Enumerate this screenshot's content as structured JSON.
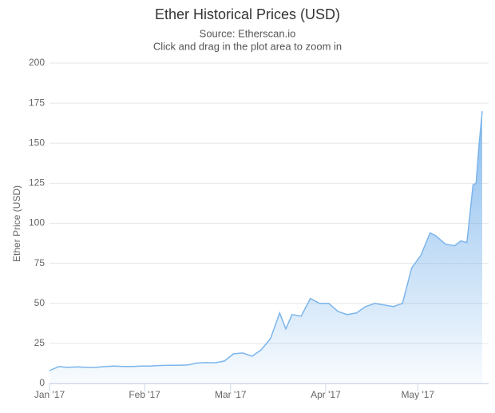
{
  "chart_data": {
    "type": "area",
    "title": "Ether Historical Prices (USD)",
    "subtitle": "Source: Etherscan.io",
    "note": "Click and drag in the plot area to zoom in",
    "y_label": "Ether Price (USD)",
    "color": "#7cb5ec",
    "x": [
      0,
      3,
      6,
      9,
      12,
      15,
      18,
      21,
      24,
      27,
      30,
      33,
      36,
      39,
      42,
      45,
      48,
      51,
      54,
      57,
      60,
      63,
      66,
      69,
      72,
      75,
      77,
      79,
      82,
      85,
      88,
      91,
      94,
      97,
      100,
      103,
      106,
      109,
      112,
      115,
      118,
      121,
      124,
      126,
      129,
      132,
      134,
      136,
      138,
      139,
      140,
      141
    ],
    "values": [
      8,
      10.5,
      10,
      10.3,
      10,
      10,
      10.5,
      10.8,
      10.6,
      10.6,
      10.8,
      10.8,
      11.2,
      11.3,
      11.3,
      11.5,
      12.7,
      13,
      12.9,
      14,
      18.5,
      19,
      17,
      21,
      28,
      44,
      34,
      43,
      42,
      53,
      50,
      50,
      45,
      43,
      44,
      48,
      50,
      49,
      48,
      50,
      72,
      80,
      94,
      92,
      87,
      86,
      89,
      88,
      124,
      125,
      150,
      170
    ],
    "xlim": [
      0,
      141
    ],
    "xticks": [
      {
        "value": 0,
        "label": "Jan '17"
      },
      {
        "value": 31,
        "label": "Feb '17"
      },
      {
        "value": 59,
        "label": "Mar '17"
      },
      {
        "value": 90,
        "label": "Apr '17"
      },
      {
        "value": 120,
        "label": "May '17"
      }
    ],
    "ylim": [
      0,
      200
    ],
    "yticks": [
      0,
      25,
      50,
      75,
      100,
      125,
      150,
      175,
      200
    ],
    "grid": true
  }
}
